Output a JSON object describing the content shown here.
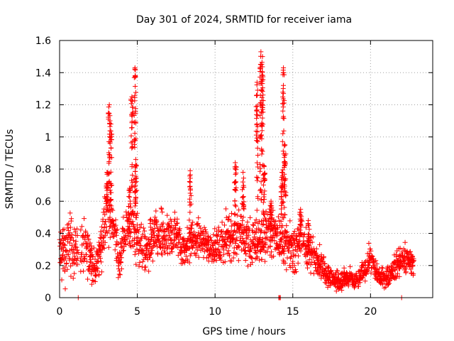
{
  "chart_data": {
    "type": "scatter",
    "title": "Day 301 of 2024, SRMTID for receiver iama",
    "xlabel": "GPS time / hours",
    "ylabel": "SRMTID / TECUs",
    "xlim": [
      0,
      24
    ],
    "ylim": [
      0,
      1.6
    ],
    "grid": true,
    "marker": "+",
    "color": "#ff0000",
    "x_ticks": [
      0,
      5,
      10,
      15,
      20
    ],
    "x_tick_labels": [
      "0",
      "5",
      "10",
      "15",
      "20"
    ],
    "y_ticks": [
      0,
      0.2,
      0.4,
      0.6,
      0.8,
      1.0,
      1.2,
      1.4,
      1.6
    ],
    "y_tick_labels": [
      "0",
      "0.2",
      "0.4",
      "0.6",
      "0.8",
      "1",
      "1.2",
      "1.4",
      "1.6"
    ],
    "envelope": [
      [
        0.0,
        0.26,
        0.18
      ],
      [
        0.3,
        0.26,
        0.15
      ],
      [
        0.6,
        0.33,
        0.15
      ],
      [
        1.0,
        0.3,
        0.12
      ],
      [
        1.5,
        0.32,
        0.12
      ],
      [
        2.0,
        0.26,
        0.1
      ],
      [
        2.3,
        0.18,
        0.06
      ],
      [
        2.7,
        0.3,
        0.12
      ],
      [
        3.0,
        0.55,
        0.15
      ],
      [
        3.4,
        0.5,
        0.12
      ],
      [
        3.8,
        0.22,
        0.08
      ],
      [
        4.2,
        0.4,
        0.1
      ],
      [
        4.6,
        0.45,
        0.12
      ],
      [
        5.0,
        0.38,
        0.12
      ],
      [
        5.5,
        0.28,
        0.1
      ],
      [
        6.0,
        0.35,
        0.12
      ],
      [
        6.5,
        0.38,
        0.12
      ],
      [
        7.0,
        0.38,
        0.1
      ],
      [
        7.5,
        0.4,
        0.1
      ],
      [
        8.0,
        0.3,
        0.08
      ],
      [
        8.5,
        0.36,
        0.1
      ],
      [
        9.0,
        0.38,
        0.08
      ],
      [
        9.5,
        0.33,
        0.1
      ],
      [
        10.0,
        0.3,
        0.08
      ],
      [
        10.5,
        0.36,
        0.1
      ],
      [
        11.0,
        0.38,
        0.12
      ],
      [
        11.5,
        0.4,
        0.12
      ],
      [
        12.0,
        0.35,
        0.12
      ],
      [
        12.5,
        0.32,
        0.1
      ],
      [
        13.0,
        0.35,
        0.12
      ],
      [
        13.5,
        0.42,
        0.12
      ],
      [
        14.0,
        0.38,
        0.1
      ],
      [
        14.5,
        0.33,
        0.1
      ],
      [
        15.0,
        0.28,
        0.1
      ],
      [
        15.5,
        0.38,
        0.12
      ],
      [
        16.0,
        0.28,
        0.08
      ],
      [
        16.5,
        0.26,
        0.08
      ],
      [
        17.0,
        0.18,
        0.06
      ],
      [
        17.5,
        0.12,
        0.05
      ],
      [
        18.0,
        0.1,
        0.04
      ],
      [
        18.5,
        0.12,
        0.05
      ],
      [
        19.0,
        0.1,
        0.04
      ],
      [
        19.5,
        0.15,
        0.05
      ],
      [
        20.0,
        0.26,
        0.06
      ],
      [
        20.3,
        0.16,
        0.05
      ],
      [
        20.8,
        0.12,
        0.04
      ],
      [
        21.3,
        0.15,
        0.05
      ],
      [
        21.8,
        0.22,
        0.07
      ],
      [
        22.3,
        0.24,
        0.07
      ],
      [
        22.8,
        0.2,
        0.05
      ]
    ],
    "segments": [
      [
        0.0,
        1.2
      ],
      [
        1.35,
        22.8
      ]
    ],
    "spikes": [
      {
        "x": 3.2,
        "peak": 1.2
      },
      {
        "x": 3.3,
        "peak": 1.08
      },
      {
        "x": 3.05,
        "peak": 0.78
      },
      {
        "x": 4.65,
        "peak": 1.25
      },
      {
        "x": 4.85,
        "peak": 1.43
      },
      {
        "x": 4.9,
        "peak": 0.86
      },
      {
        "x": 4.5,
        "peak": 0.68
      },
      {
        "x": 8.4,
        "peak": 0.79
      },
      {
        "x": 11.3,
        "peak": 0.84
      },
      {
        "x": 11.8,
        "peak": 0.78
      },
      {
        "x": 12.95,
        "peak": 1.53
      },
      {
        "x": 13.05,
        "peak": 1.5
      },
      {
        "x": 13.15,
        "peak": 0.82
      },
      {
        "x": 12.7,
        "peak": 1.34
      },
      {
        "x": 14.4,
        "peak": 1.43
      },
      {
        "x": 14.5,
        "peak": 0.95
      },
      {
        "x": 14.3,
        "peak": 0.78
      },
      {
        "x": 13.6,
        "peak": 0.6
      },
      {
        "x": 15.5,
        "peak": 0.55
      },
      {
        "x": 16.0,
        "peak": 0.48
      }
    ],
    "baseline_points": [
      1.2,
      14.1,
      14.15,
      14.2,
      22.0
    ]
  }
}
